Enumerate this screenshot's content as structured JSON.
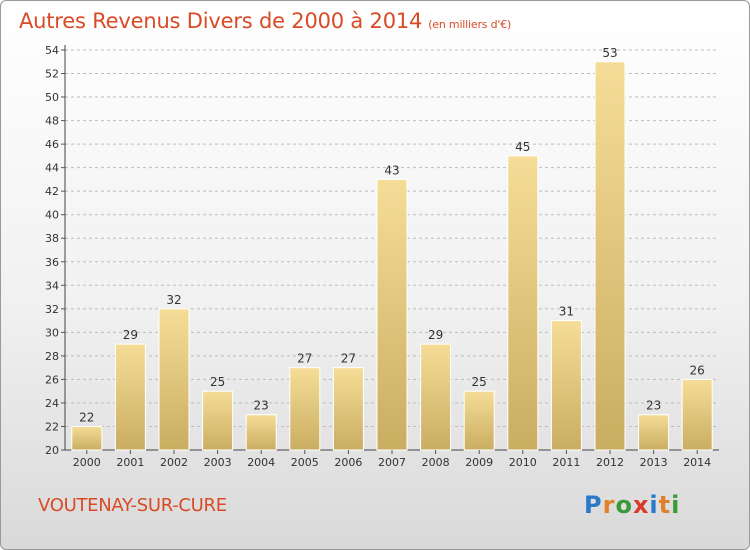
{
  "title": "Autres Revenus Divers de 2000 à 2014",
  "title_unit": "(en milliers d'€)",
  "commune": "VOUTENAY-SUR-CURE",
  "logo": {
    "text": "Proxiti",
    "letters": [
      "P",
      "r",
      "o",
      "x",
      "i",
      "t",
      "i"
    ],
    "colors": [
      "#2a7ac9",
      "#e0812a",
      "#3a9a3a",
      "#d93a2a",
      "#2a7ac9",
      "#e0812a",
      "#3a9a3a"
    ]
  },
  "colors": {
    "title": "#d94a25",
    "bar_light": "#f6dd97",
    "bar_dark": "#c9ad61",
    "grid": "#bdbdbd"
  },
  "chart_data": {
    "type": "bar",
    "categories": [
      "2000",
      "2001",
      "2002",
      "2003",
      "2004",
      "2005",
      "2006",
      "2007",
      "2008",
      "2009",
      "2010",
      "2011",
      "2012",
      "2013",
      "2014"
    ],
    "values": [
      22,
      29,
      32,
      25,
      23,
      27,
      27,
      43,
      29,
      25,
      45,
      31,
      53,
      23,
      26
    ],
    "ylim": [
      20,
      54
    ],
    "yticks": [
      20,
      22,
      24,
      26,
      28,
      30,
      32,
      34,
      36,
      38,
      40,
      42,
      44,
      46,
      48,
      50,
      52,
      54
    ],
    "grid": true,
    "data_labels": true
  }
}
